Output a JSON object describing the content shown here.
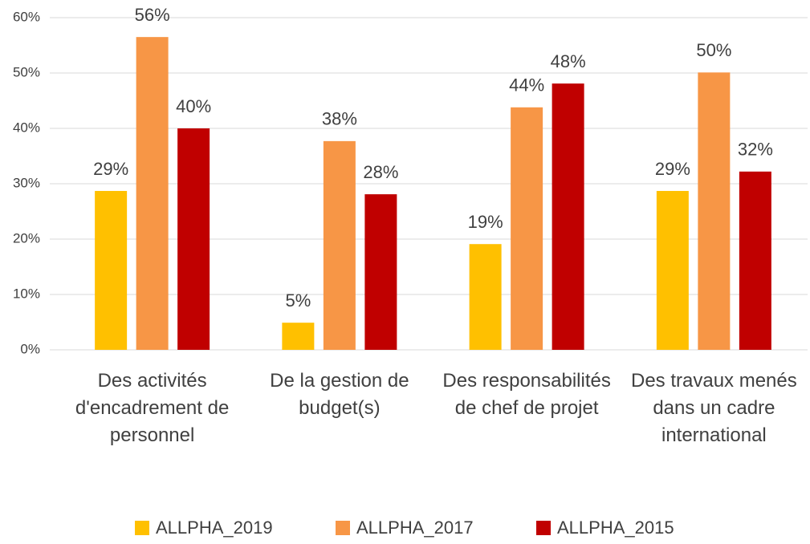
{
  "chart_data": {
    "type": "bar",
    "categories": [
      "Des activités d'encadrement de personnel",
      "De la gestion de budget(s)",
      "Des responsabilités de chef de projet",
      "Des travaux menés dans un cadre international"
    ],
    "series": [
      {
        "name": "ALLPHA_2019",
        "color": "#ffc000",
        "values": [
          28.7,
          4.9,
          19.1,
          28.7
        ],
        "value_labels": [
          "29%",
          "5%",
          "19%",
          "29%"
        ]
      },
      {
        "name": "ALLPHA_2017",
        "color": "#f79646",
        "values": [
          56.5,
          37.7,
          43.8,
          50.1
        ],
        "value_labels": [
          "56%",
          "38%",
          "44%",
          "50%"
        ]
      },
      {
        "name": "ALLPHA_2015",
        "color": "#c00000",
        "values": [
          40,
          28.1,
          48.1,
          32.2
        ],
        "value_labels": [
          "40%",
          "28%",
          "48%",
          "32%"
        ]
      }
    ],
    "ylim": [
      0,
      60
    ],
    "yticks": [
      {
        "value": 0,
        "label": "0%"
      },
      {
        "value": 10,
        "label": "10%"
      },
      {
        "value": 20,
        "label": "20%"
      },
      {
        "value": 30,
        "label": "30%"
      },
      {
        "value": 40,
        "label": "40%"
      },
      {
        "value": 50,
        "label": "50%"
      },
      {
        "value": 60,
        "label": "60%"
      }
    ],
    "grid": true,
    "legend": "bottom"
  }
}
